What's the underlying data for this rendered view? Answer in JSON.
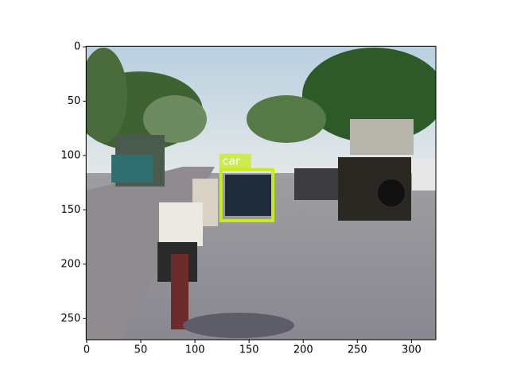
{
  "chart_data": {
    "type": "image",
    "xlim": [
      -0.5,
      322.5
    ],
    "ylim": [
      269.5,
      -0.5
    ],
    "xticks": [
      0,
      50,
      100,
      150,
      200,
      250,
      300
    ],
    "yticks": [
      0,
      50,
      100,
      150,
      200,
      250
    ],
    "color": "#c8eb1e",
    "boxes": [
      {
        "label": "car",
        "x0": 124,
        "y0": 113,
        "x1": 172,
        "y1": 160
      }
    ]
  }
}
